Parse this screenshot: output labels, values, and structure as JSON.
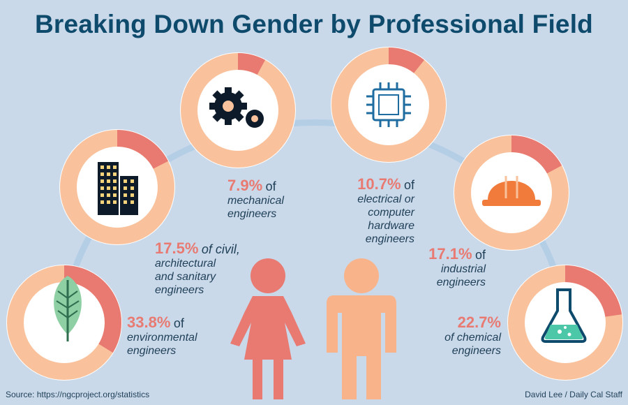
{
  "title": "Breaking Down Gender by Professional Field",
  "footer": {
    "source": "Source: https://ngcproject.org/statistics",
    "credit": "David Lee / Daily Cal Staff"
  },
  "colors": {
    "background": "#c9d9ea",
    "ring_base": "#f9c29c",
    "ring_highlight": "#e87a72",
    "arc": "#b4cee6",
    "title": "#0e4a6b",
    "woman": "#e87a72",
    "man": "#f9b38a"
  },
  "chart_data": {
    "type": "pie",
    "title": "Breaking Down Gender by Professional Field",
    "series": [
      {
        "field": "environmental",
        "pct_label": "33.8%",
        "unit": "of",
        "text": "environmental\nengineers",
        "value": 33.8,
        "icon": "leaf-icon"
      },
      {
        "field": "civil",
        "pct_label": "17.5%",
        "unit": "of civil,",
        "text": "architectural\nand sanitary\nengineers",
        "value": 17.5,
        "icon": "buildings-icon"
      },
      {
        "field": "mechanical",
        "pct_label": "7.9%",
        "unit": "of",
        "text": "mechanical\nengineers",
        "value": 7.9,
        "icon": "gears-icon"
      },
      {
        "field": "electrical",
        "pct_label": "10.7%",
        "unit": "of",
        "text": "electrical or\ncomputer\nhardware\nengineers",
        "value": 10.7,
        "icon": "chip-icon"
      },
      {
        "field": "industrial",
        "pct_label": "17.1%",
        "unit": "of",
        "text": "industrial\nengineers",
        "value": 17.1,
        "icon": "hard-hat-icon"
      },
      {
        "field": "chemical",
        "pct_label": "22.7%",
        "unit": "",
        "text": "of chemical\nengineers",
        "value": 22.7,
        "icon": "flask-icon"
      }
    ]
  }
}
